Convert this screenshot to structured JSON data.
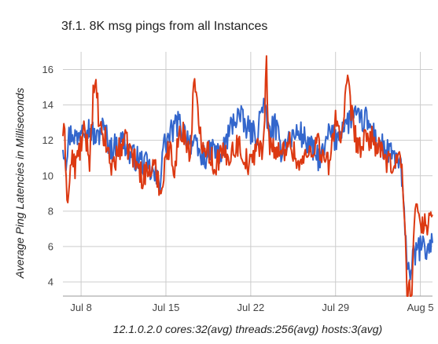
{
  "chart_data": {
    "type": "line",
    "title": "3f.1. 8K msg pings from all Instances",
    "xlabel": "12.1.0.2.0 cores:32(avg) threads:256(avg) hosts:3(avg)",
    "ylabel": "Average Ping Latencies in Milliseconds",
    "x_tick_labels": [
      "Jul 8",
      "Jul 15",
      "Jul 22",
      "Jul 29",
      "Aug 5"
    ],
    "x_ticks": [
      1.5,
      8.5,
      15.5,
      22.5,
      29.5
    ],
    "xlim": [
      0,
      30.5
    ],
    "y_ticks": [
      4,
      6,
      8,
      10,
      12,
      14,
      16
    ],
    "ylim": [
      3.2,
      17
    ],
    "grid": true,
    "legend": "none",
    "colors": {
      "blue": "#3366cc",
      "red": "#dc3912"
    },
    "series": [
      {
        "color": "#3366cc",
        "x": [
          0,
          0.25,
          0.5,
          0.8,
          1.2,
          1.6,
          2.0,
          2.4,
          2.8,
          3.2,
          3.6,
          4.0,
          4.5,
          5.0,
          5.5,
          6.0,
          6.5,
          7.0,
          7.5,
          8.0,
          8.2,
          8.6,
          9.0,
          9.5,
          10.0,
          10.5,
          11.0,
          11.5,
          12.0,
          12.5,
          13.0,
          13.5,
          14.0,
          14.5,
          15.0,
          15.5,
          16.0,
          16.5,
          17.0,
          17.5,
          18.0,
          18.5,
          19.0,
          19.5,
          20.0,
          20.5,
          21.0,
          21.5,
          22.0,
          22.5,
          23.0,
          23.5,
          24.0,
          24.5,
          25.0,
          25.5,
          26.0,
          26.5,
          27.0,
          27.5,
          27.9,
          28.3,
          28.6,
          29.0,
          29.5,
          30.0,
          30.5
        ],
        "y": [
          11.8,
          11.0,
          12.2,
          12.5,
          12.0,
          13.0,
          12.8,
          12.5,
          12.0,
          12.8,
          12.2,
          11.5,
          11.8,
          12.0,
          11.2,
          11.0,
          10.8,
          10.5,
          10.0,
          9.5,
          11.5,
          12.0,
          12.5,
          13.0,
          12.5,
          12.0,
          11.5,
          11.0,
          11.2,
          11.5,
          11.0,
          12.0,
          13.0,
          13.5,
          12.8,
          12.5,
          12.2,
          14.2,
          12.5,
          12.8,
          11.5,
          12.0,
          12.2,
          12.5,
          12.0,
          11.5,
          11.0,
          11.2,
          12.5,
          12.0,
          12.8,
          13.0,
          13.5,
          13.0,
          13.2,
          12.5,
          12.0,
          11.5,
          11.2,
          11.0,
          10.5,
          6.0,
          4.5,
          5.5,
          6.0,
          5.8,
          6.2
        ]
      },
      {
        "color": "#dc3912",
        "x": [
          0,
          0.15,
          0.4,
          0.7,
          1.0,
          1.4,
          1.8,
          2.2,
          2.5,
          2.8,
          3.0,
          3.5,
          4.0,
          4.5,
          5.0,
          5.5,
          6.0,
          6.5,
          7.0,
          7.5,
          8.0,
          8.1,
          8.4,
          8.8,
          9.2,
          9.5,
          10.0,
          10.5,
          10.8,
          11.2,
          11.5,
          12.0,
          12.5,
          13.0,
          13.5,
          14.0,
          14.5,
          15.0,
          15.5,
          16.0,
          16.5,
          16.8,
          17.0,
          17.5,
          18.0,
          18.5,
          19.0,
          19.5,
          20.0,
          20.5,
          21.0,
          21.5,
          22.0,
          22.5,
          23.0,
          23.5,
          24.0,
          24.5,
          25.0,
          25.5,
          26.0,
          26.5,
          27.0,
          27.5,
          27.9,
          28.2,
          28.4,
          28.6,
          28.8,
          29.0,
          29.3,
          29.6,
          30.0,
          30.5
        ],
        "y": [
          12.5,
          12.0,
          8.3,
          11.0,
          10.5,
          11.5,
          12.5,
          11.0,
          14.5,
          14.8,
          12.5,
          12.0,
          10.5,
          11.2,
          12.0,
          11.5,
          10.8,
          10.0,
          10.2,
          10.5,
          9.5,
          8.8,
          11.0,
          11.5,
          10.5,
          12.0,
          12.5,
          11.0,
          15.4,
          13.0,
          12.0,
          11.5,
          10.5,
          11.2,
          11.0,
          11.5,
          11.8,
          11.0,
          10.5,
          12.0,
          11.0,
          16.3,
          12.0,
          11.5,
          11.0,
          12.0,
          11.5,
          10.5,
          11.0,
          11.5,
          12.0,
          11.0,
          10.5,
          13.5,
          12.0,
          15.3,
          12.5,
          11.5,
          12.0,
          12.2,
          11.5,
          11.0,
          10.5,
          11.0,
          11.0,
          7.5,
          3.3,
          3.8,
          3.5,
          7.5,
          8.0,
          7.5,
          7.2,
          7.8
        ]
      }
    ]
  }
}
